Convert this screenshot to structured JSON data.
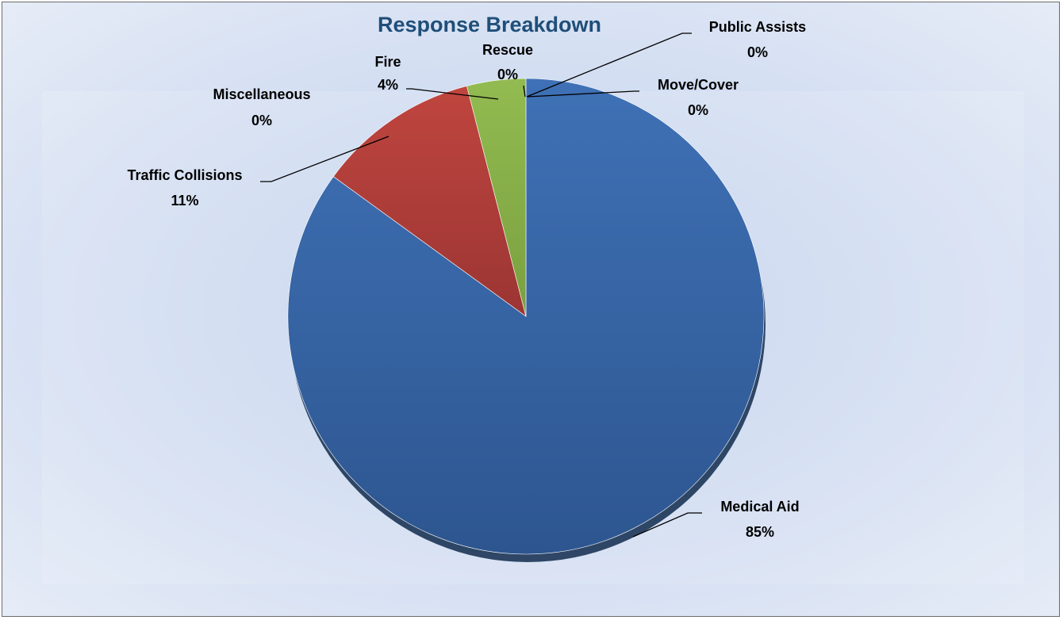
{
  "chart_data": {
    "type": "pie",
    "title": "Response Breakdown",
    "slices": [
      {
        "label": "Medical Aid",
        "value": 85,
        "display": "85%",
        "color": "#3b6aad"
      },
      {
        "label": "Traffic Collisions",
        "value": 11,
        "display": "11%",
        "color": "#b5403c"
      },
      {
        "label": "Fire",
        "value": 4,
        "display": "4%",
        "color": "#8ab04a"
      },
      {
        "label": "Miscellaneous",
        "value": 0,
        "display": "0%",
        "color": "#7a5fa0"
      },
      {
        "label": "Rescue",
        "value": 0,
        "display": "0%",
        "color": "#3fa0b8"
      },
      {
        "label": "Public Assists",
        "value": 0,
        "display": "0%",
        "color": "#e0892e"
      },
      {
        "label": "Move/Cover",
        "value": 0,
        "display": "0%",
        "color": "#96b4dc"
      }
    ],
    "legend": false
  }
}
